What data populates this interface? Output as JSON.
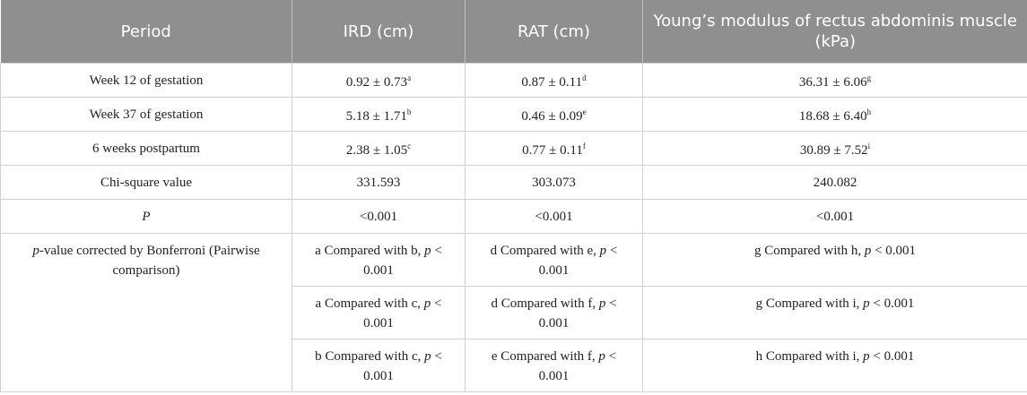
{
  "table": {
    "header": [
      "Period",
      "IRD (cm)",
      "RAT (cm)",
      "Young’s modulus of rectus abdominis muscle (kPa)"
    ],
    "rows": [
      [
        [
          "Week 12 of gestation"
        ],
        [
          "0.92 ± 0.73",
          {
            "sup": "a"
          }
        ],
        [
          "0.87 ± 0.11",
          {
            "sup": "d"
          }
        ],
        [
          "36.31 ± 6.06",
          {
            "sup": "g"
          }
        ]
      ],
      [
        [
          "Week 37 of gestation"
        ],
        [
          "5.18 ± 1.71",
          {
            "sup": "b"
          }
        ],
        [
          "0.46 ± 0.09",
          {
            "sup": "e"
          }
        ],
        [
          "18.68 ± 6.40",
          {
            "sup": "h"
          }
        ]
      ],
      [
        [
          "6 weeks postpartum"
        ],
        [
          "2.38 ± 1.05",
          {
            "sup": "c"
          }
        ],
        [
          "0.77 ± 0.11",
          {
            "sup": "f"
          }
        ],
        [
          "30.89 ± 7.52",
          {
            "sup": "i"
          }
        ]
      ],
      [
        [
          "Chi-square value"
        ],
        [
          "331.593"
        ],
        [
          "303.073"
        ],
        [
          "240.082"
        ]
      ],
      [
        [
          {
            "i": "P"
          }
        ],
        [
          "<0.001"
        ],
        [
          "<0.001"
        ],
        [
          "<0.001"
        ]
      ],
      [
        [
          {
            "i": "p"
          },
          "-value corrected by Bonferroni (Pairwise comparison)"
        ],
        [
          "a Compared with b, ",
          {
            "i": "p"
          },
          " < 0.001"
        ],
        [
          "d Compared with e, ",
          {
            "i": "p"
          },
          " < 0.001"
        ],
        [
          "g Compared with h, ",
          {
            "i": "p"
          },
          " < 0.001"
        ]
      ],
      [
        [
          "a Compared with c, ",
          {
            "i": "p"
          },
          " < 0.001"
        ],
        [
          "d Compared with f, ",
          {
            "i": "p"
          },
          " < 0.001"
        ],
        [
          "g Compared with i, ",
          {
            "i": "p"
          },
          " < 0.001"
        ]
      ],
      [
        [
          "b Compared with c, ",
          {
            "i": "p"
          },
          " < 0.001"
        ],
        [
          "e Compared with f, ",
          {
            "i": "p"
          },
          " < 0.001"
        ],
        [
          "h Compared with i, ",
          {
            "i": "p"
          },
          " < 0.001"
        ]
      ]
    ]
  }
}
